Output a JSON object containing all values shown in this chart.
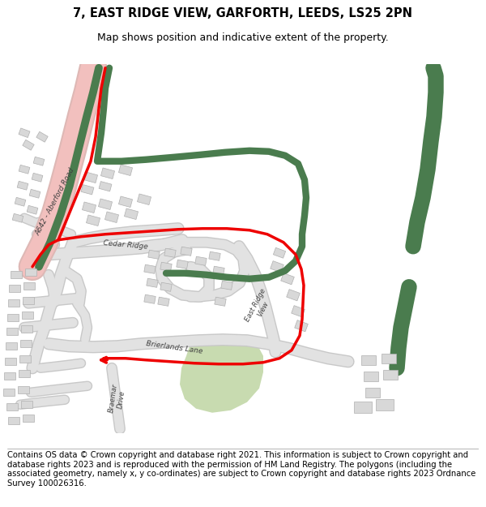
{
  "title_line1": "7, EAST RIDGE VIEW, GARFORTH, LEEDS, LS25 2PN",
  "title_line2": "Map shows position and indicative extent of the property.",
  "footer_text": "Contains OS data © Crown copyright and database right 2021. This information is subject to Crown copyright and database rights 2023 and is reproduced with the permission of HM Land Registry. The polygons (including the associated geometry, namely x, y co-ordinates) are subject to Crown copyright and database rights 2023 Ordnance Survey 100026316.",
  "bg_color": "#ffffff",
  "road_color": "#e2e2e2",
  "road_outline": "#c8c8c8",
  "building_color": "#d8d8d8",
  "building_outline": "#b0b0b0",
  "green_area_color": "#c8dbb0",
  "green_road_color": "#4a7c4e",
  "red_boundary_color": "#ee0000",
  "pink_road_color": "#f2c0be",
  "title_fontsize": 10.5,
  "subtitle_fontsize": 9,
  "footer_fontsize": 7.2,
  "figsize": [
    6.0,
    6.25
  ],
  "dpi": 100
}
